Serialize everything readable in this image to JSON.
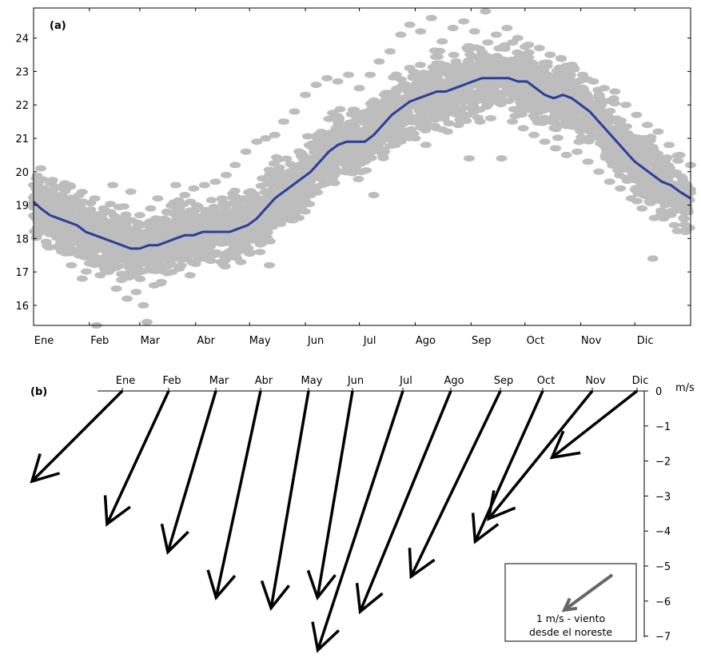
{
  "chart_data": [
    {
      "type": "scatter",
      "panel_label": "(a)",
      "months": [
        "Ene",
        "Feb",
        "Mar",
        "Abr",
        "May",
        "Jun",
        "Jul",
        "Ago",
        "Sep",
        "Oct",
        "Nov",
        "Dic"
      ],
      "xlim": [
        1,
        366
      ],
      "xticks_day": [
        1,
        32,
        60,
        91,
        121,
        152,
        182,
        213,
        244,
        274,
        305,
        335
      ],
      "ylim": [
        15.4,
        24.9
      ],
      "yticks": [
        16,
        17,
        18,
        19,
        20,
        21,
        22,
        23,
        24
      ],
      "grid": false,
      "series": [
        {
          "kind": "scatter",
          "color": "#bdbdbd",
          "spread_approx": 1.3,
          "values": [
            [
              1,
              19.6
            ],
            [
              3,
              18.2
            ],
            [
              5,
              20.1
            ],
            [
              8,
              17.9
            ],
            [
              10,
              19.4
            ],
            [
              13,
              18.6
            ],
            [
              16,
              17.7
            ],
            [
              19,
              19.5
            ],
            [
              22,
              17.2
            ],
            [
              25,
              19.0
            ],
            [
              28,
              16.8
            ],
            [
              30,
              18.7
            ],
            [
              33,
              17.4
            ],
            [
              35,
              19.2
            ],
            [
              36,
              15.4
            ],
            [
              38,
              16.9
            ],
            [
              40,
              18.9
            ],
            [
              43,
              17.1
            ],
            [
              45,
              19.6
            ],
            [
              47,
              16.5
            ],
            [
              50,
              18.3
            ],
            [
              53,
              16.2
            ],
            [
              55,
              19.4
            ],
            [
              58,
              16.4
            ],
            [
              60,
              18.7
            ],
            [
              62,
              16.0
            ],
            [
              64,
              15.5
            ],
            [
              66,
              18.9
            ],
            [
              68,
              16.6
            ],
            [
              70,
              19.2
            ],
            [
              72,
              16.7
            ],
            [
              75,
              18.8
            ],
            [
              78,
              17.0
            ],
            [
              80,
              19.6
            ],
            [
              83,
              17.2
            ],
            [
              85,
              19.3
            ],
            [
              88,
              16.9
            ],
            [
              90,
              19.5
            ],
            [
              93,
              17.4
            ],
            [
              96,
              19.6
            ],
            [
              99,
              17.5
            ],
            [
              102,
              19.7
            ],
            [
              105,
              17.3
            ],
            [
              108,
              19.9
            ],
            [
              110,
              17.6
            ],
            [
              113,
              20.2
            ],
            [
              116,
              17.8
            ],
            [
              119,
              20.6
            ],
            [
              122,
              18.0
            ],
            [
              125,
              20.9
            ],
            [
              128,
              18.3
            ],
            [
              130,
              21.0
            ],
            [
              132,
              17.2
            ],
            [
              135,
              21.1
            ],
            [
              137,
              18.6
            ],
            [
              140,
              21.5
            ],
            [
              143,
              18.8
            ],
            [
              146,
              21.8
            ],
            [
              149,
              19.0
            ],
            [
              152,
              22.3
            ],
            [
              155,
              19.3
            ],
            [
              158,
              22.6
            ],
            [
              161,
              19.6
            ],
            [
              164,
              22.8
            ],
            [
              167,
              19.8
            ],
            [
              170,
              22.7
            ],
            [
              173,
              20.0
            ],
            [
              176,
              22.9
            ],
            [
              179,
              20.1
            ],
            [
              182,
              22.5
            ],
            [
              185,
              20.3
            ],
            [
              188,
              22.9
            ],
            [
              190,
              19.3
            ],
            [
              193,
              23.3
            ],
            [
              196,
              20.6
            ],
            [
              199,
              23.6
            ],
            [
              202,
              20.8
            ],
            [
              205,
              24.1
            ],
            [
              208,
              21.2
            ],
            [
              210,
              24.4
            ],
            [
              213,
              21.0
            ],
            [
              216,
              24.2
            ],
            [
              219,
              20.8
            ],
            [
              222,
              24.6
            ],
            [
              225,
              21.3
            ],
            [
              228,
              23.9
            ],
            [
              231,
              21.2
            ],
            [
              234,
              24.3
            ],
            [
              237,
              21.4
            ],
            [
              240,
              24.5
            ],
            [
              243,
              20.4
            ],
            [
              246,
              24.2
            ],
            [
              249,
              21.5
            ],
            [
              252,
              24.8
            ],
            [
              255,
              21.6
            ],
            [
              258,
              24.1
            ],
            [
              261,
              20.4
            ],
            [
              264,
              24.3
            ],
            [
              267,
              21.5
            ],
            [
              270,
              24.0
            ],
            [
              273,
              21.3
            ],
            [
              276,
              23.8
            ],
            [
              279,
              21.1
            ],
            [
              282,
              23.7
            ],
            [
              285,
              20.9
            ],
            [
              288,
              23.5
            ],
            [
              291,
              20.7
            ],
            [
              294,
              23.4
            ],
            [
              297,
              20.5
            ],
            [
              300,
              23.2
            ],
            [
              303,
              20.6
            ],
            [
              306,
              22.9
            ],
            [
              309,
              20.3
            ],
            [
              312,
              22.7
            ],
            [
              315,
              20.0
            ],
            [
              318,
              22.5
            ],
            [
              321,
              19.7
            ],
            [
              324,
              22.4
            ],
            [
              327,
              19.5
            ],
            [
              330,
              22.0
            ],
            [
              333,
              19.2
            ],
            [
              336,
              21.7
            ],
            [
              339,
              18.9
            ],
            [
              342,
              21.4
            ],
            [
              345,
              17.4
            ],
            [
              348,
              21.2
            ],
            [
              351,
              18.6
            ],
            [
              354,
              20.8
            ],
            [
              357,
              18.4
            ],
            [
              360,
              20.5
            ],
            [
              363,
              18.2
            ],
            [
              366,
              20.2
            ]
          ]
        },
        {
          "kind": "line",
          "color": "#2a3f9a",
          "values": [
            [
              1,
              19.1
            ],
            [
              5,
              18.9
            ],
            [
              10,
              18.7
            ],
            [
              15,
              18.6
            ],
            [
              20,
              18.5
            ],
            [
              25,
              18.4
            ],
            [
              30,
              18.2
            ],
            [
              35,
              18.1
            ],
            [
              40,
              18.0
            ],
            [
              45,
              17.9
            ],
            [
              50,
              17.8
            ],
            [
              55,
              17.7
            ],
            [
              60,
              17.7
            ],
            [
              65,
              17.8
            ],
            [
              70,
              17.8
            ],
            [
              75,
              17.9
            ],
            [
              80,
              18.0
            ],
            [
              85,
              18.1
            ],
            [
              90,
              18.1
            ],
            [
              95,
              18.2
            ],
            [
              100,
              18.2
            ],
            [
              105,
              18.2
            ],
            [
              110,
              18.2
            ],
            [
              115,
              18.3
            ],
            [
              120,
              18.4
            ],
            [
              125,
              18.6
            ],
            [
              130,
              18.9
            ],
            [
              135,
              19.2
            ],
            [
              140,
              19.4
            ],
            [
              145,
              19.6
            ],
            [
              150,
              19.8
            ],
            [
              155,
              20.0
            ],
            [
              160,
              20.3
            ],
            [
              165,
              20.6
            ],
            [
              170,
              20.8
            ],
            [
              175,
              20.9
            ],
            [
              180,
              20.9
            ],
            [
              185,
              20.9
            ],
            [
              190,
              21.1
            ],
            [
              195,
              21.4
            ],
            [
              200,
              21.7
            ],
            [
              205,
              21.9
            ],
            [
              210,
              22.1
            ],
            [
              215,
              22.2
            ],
            [
              220,
              22.3
            ],
            [
              225,
              22.4
            ],
            [
              230,
              22.4
            ],
            [
              235,
              22.5
            ],
            [
              240,
              22.6
            ],
            [
              245,
              22.7
            ],
            [
              250,
              22.8
            ],
            [
              255,
              22.8
            ],
            [
              260,
              22.8
            ],
            [
              265,
              22.8
            ],
            [
              270,
              22.7
            ],
            [
              275,
              22.7
            ],
            [
              280,
              22.5
            ],
            [
              285,
              22.3
            ],
            [
              290,
              22.2
            ],
            [
              295,
              22.3
            ],
            [
              300,
              22.2
            ],
            [
              305,
              22.0
            ],
            [
              310,
              21.8
            ],
            [
              315,
              21.5
            ],
            [
              320,
              21.2
            ],
            [
              325,
              20.9
            ],
            [
              330,
              20.6
            ],
            [
              335,
              20.3
            ],
            [
              340,
              20.1
            ],
            [
              345,
              19.9
            ],
            [
              350,
              19.7
            ],
            [
              355,
              19.6
            ],
            [
              360,
              19.4
            ],
            [
              366,
              19.2
            ]
          ]
        }
      ]
    },
    {
      "type": "vector",
      "panel_label": "(b)",
      "months": [
        "Ene",
        "Feb",
        "Mar",
        "Abr",
        "May",
        "Jun",
        "Jul",
        "Ago",
        "Sep",
        "Oct",
        "Nov",
        "Dic"
      ],
      "unit": "m/s",
      "ylim": [
        0,
        -7
      ],
      "yticks": [
        "0",
        "−1",
        "−2",
        "−3",
        "−4",
        "−5",
        "−6",
        "−7"
      ],
      "series": [
        {
          "name": "viento",
          "color": "#000000",
          "values": [
            {
              "month": "Ene",
              "u": -2.58,
              "v": -2.58
            },
            {
              "month": "Feb",
              "u": -1.76,
              "v": -3.8
            },
            {
              "month": "Mar",
              "u": -1.37,
              "v": -4.6
            },
            {
              "month": "Abr",
              "u": -1.27,
              "v": -5.9
            },
            {
              "month": "May",
              "u": -1.07,
              "v": -6.2
            },
            {
              "month": "Jun",
              "u": -1.0,
              "v": -5.9
            },
            {
              "month": "Jul",
              "u": -2.43,
              "v": -7.4
            },
            {
              "month": "Ago",
              "u": -2.59,
              "v": -6.3
            },
            {
              "month": "Sep",
              "u": -2.55,
              "v": -5.3
            },
            {
              "month": "Oct",
              "u": -1.93,
              "v": -4.3
            },
            {
              "month": "Nov",
              "u": -2.96,
              "v": -3.65
            },
            {
              "month": "Dic",
              "u": -2.43,
              "v": -1.9
            }
          ]
        }
      ],
      "legend": {
        "position": "bottom-right",
        "line1": "1 m/s - viento",
        "line2": "desde el noreste",
        "color": "#666666"
      }
    }
  ]
}
